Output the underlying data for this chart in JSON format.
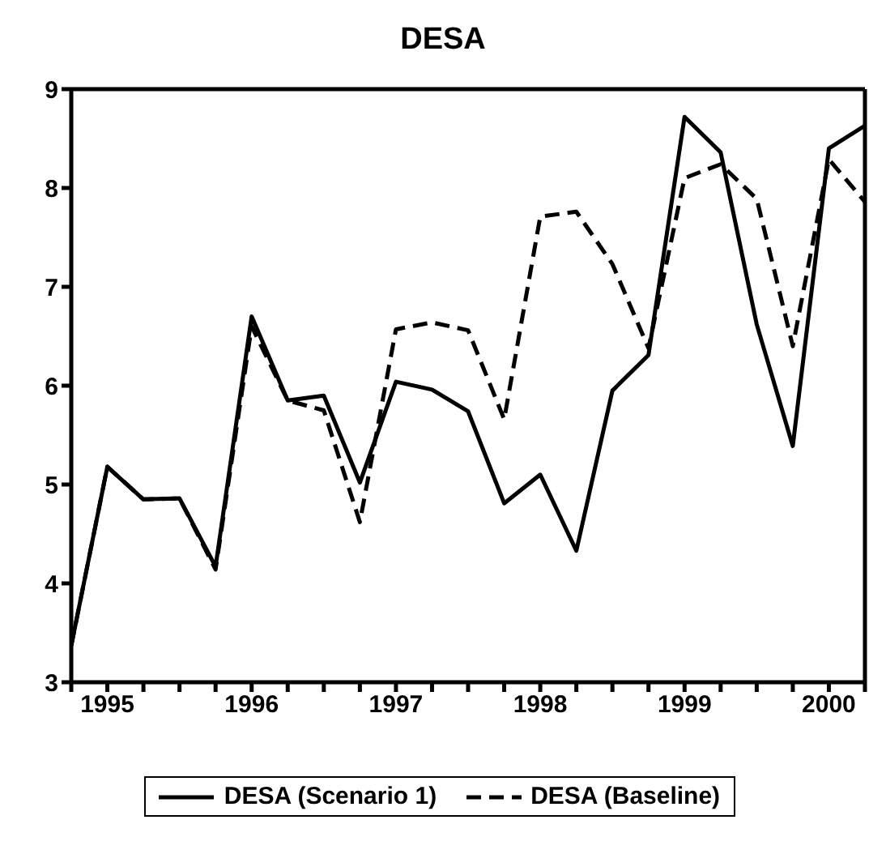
{
  "chart_data": {
    "type": "line",
    "title": "DESA",
    "x": [
      1994.75,
      1995,
      1995.25,
      1995.5,
      1995.75,
      1996,
      1996.25,
      1996.5,
      1996.75,
      1997,
      1997.25,
      1997.5,
      1997.75,
      1998,
      1998.25,
      1998.5,
      1998.75,
      1999,
      1999.25,
      1999.5,
      1999.75,
      2000,
      2000.25
    ],
    "series": [
      {
        "name": "DESA (Scenario 1)",
        "color": "#000000",
        "line_style": "solid",
        "values": [
          3.37,
          5.18,
          4.85,
          4.86,
          4.17,
          6.7,
          5.85,
          5.9,
          5.02,
          6.04,
          5.96,
          5.74,
          4.81,
          5.1,
          4.33,
          5.95,
          6.31,
          8.72,
          8.36,
          6.62,
          5.39,
          8.4,
          8.63
        ]
      },
      {
        "name": "DESA (Baseline)",
        "color": "#000000",
        "line_style": "dashed",
        "values": [
          3.37,
          5.18,
          4.85,
          4.86,
          4.14,
          6.6,
          5.85,
          5.75,
          4.62,
          6.57,
          6.64,
          6.56,
          5.66,
          7.71,
          7.76,
          7.23,
          6.38,
          8.1,
          8.24,
          7.89,
          6.4,
          8.29,
          7.86
        ]
      }
    ],
    "xlim": [
      1994.75,
      2000.25
    ],
    "xticks": [
      {
        "value": 1994.75,
        "label": null
      },
      1995,
      {
        "value": 1995.25,
        "label": null
      },
      {
        "value": 1995.5,
        "label": null
      },
      {
        "value": 1995.75,
        "label": null
      },
      1996,
      {
        "value": 1996.25,
        "label": null
      },
      {
        "value": 1996.5,
        "label": null
      },
      {
        "value": 1996.75,
        "label": null
      },
      1997,
      {
        "value": 1997.25,
        "label": null
      },
      {
        "value": 1997.5,
        "label": null
      },
      {
        "value": 1997.75,
        "label": null
      },
      1998,
      {
        "value": 1998.25,
        "label": null
      },
      {
        "value": 1998.5,
        "label": null
      },
      {
        "value": 1998.75,
        "label": null
      },
      1999,
      {
        "value": 1999.25,
        "label": null
      },
      {
        "value": 1999.5,
        "label": null
      },
      {
        "value": 1999.75,
        "label": null
      },
      2000,
      {
        "value": 2000.25,
        "label": null
      }
    ],
    "ylim": [
      3,
      9
    ],
    "yticks": [
      3,
      4,
      5,
      6,
      7,
      8,
      9
    ],
    "grid": false,
    "legend": "bottom",
    "marker": "none"
  }
}
